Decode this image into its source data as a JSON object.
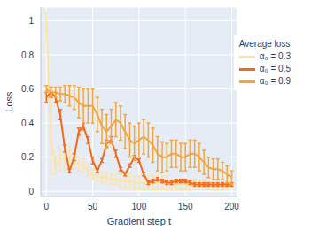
{
  "chart_data": {
    "type": "line",
    "x_label": "Gradient step t",
    "y_label": "Loss",
    "legend_title": "Average loss",
    "legend": "upper right",
    "grid": true,
    "xlim": [
      -6,
      206
    ],
    "ylim": [
      -0.03,
      1.08
    ],
    "xticks": [
      0,
      50,
      100,
      150,
      200
    ],
    "yticks": [
      0,
      0.2,
      0.4,
      0.6,
      0.8,
      1
    ],
    "x": [
      0,
      5,
      10,
      15,
      20,
      25,
      30,
      35,
      40,
      45,
      50,
      55,
      60,
      65,
      70,
      75,
      80,
      85,
      90,
      95,
      100,
      105,
      110,
      115,
      120,
      125,
      130,
      135,
      140,
      145,
      150,
      155,
      160,
      165,
      170,
      175,
      180,
      185,
      190,
      195,
      200
    ],
    "series": [
      {
        "name": "α₀ = 0.3",
        "color": "#fde3a7",
        "values": [
          1.0,
          0.3,
          0.15,
          0.18,
          0.2,
          0.2,
          0.18,
          0.16,
          0.15,
          0.12,
          0.1,
          0.09,
          0.08,
          0.08,
          0.07,
          0.07,
          0.06,
          0.06,
          0.06,
          0.05,
          0.05,
          0.05,
          0.05,
          0.05,
          0.05,
          0.05,
          0.05,
          0.04,
          0.04,
          0.04,
          0.04,
          0.04,
          0.04,
          0.04,
          0.04,
          0.03,
          0.03,
          0.03,
          0.03,
          0.03,
          0.03
        ],
        "error": [
          0.05,
          0.2,
          0.05,
          0.06,
          0.08,
          0.06,
          0.05,
          0.04,
          0.04,
          0.03,
          0.03,
          0.03,
          0.03,
          0.03,
          0.03,
          0.03,
          0.04,
          0.04,
          0.04,
          0.04,
          0.04,
          0.04,
          0.04,
          0.04,
          0.04,
          0.04,
          0.04,
          0.03,
          0.03,
          0.03,
          0.03,
          0.03,
          0.02,
          0.02,
          0.02,
          0.02,
          0.02,
          0.02,
          0.02,
          0.01,
          0.01
        ]
      },
      {
        "name": "α₀ = 0.5",
        "color": "#f26b1d",
        "values": [
          0.55,
          0.58,
          0.55,
          0.45,
          0.25,
          0.12,
          0.2,
          0.35,
          0.38,
          0.3,
          0.18,
          0.12,
          0.18,
          0.28,
          0.3,
          0.22,
          0.13,
          0.1,
          0.15,
          0.2,
          0.18,
          0.1,
          0.05,
          0.06,
          0.07,
          0.06,
          0.05,
          0.05,
          0.06,
          0.06,
          0.06,
          0.05,
          0.04,
          0.04,
          0.04,
          0.04,
          0.04,
          0.04,
          0.04,
          0.04,
          0.04
        ],
        "error": [
          0.03,
          0.03,
          0.03,
          0.03,
          0.02,
          0.01,
          0.02,
          0.02,
          0.02,
          0.02,
          0.02,
          0.01,
          0.01,
          0.02,
          0.02,
          0.02,
          0.01,
          0.01,
          0.01,
          0.01,
          0.01,
          0.01,
          0.01,
          0.01,
          0.01,
          0.01,
          0.01,
          0.01,
          0.01,
          0.01,
          0.01,
          0.01,
          0.01,
          0.01,
          0.01,
          0.01,
          0.01,
          0.01,
          0.01,
          0.01,
          0.01
        ]
      },
      {
        "name": "α₀ = 0.9",
        "color": "#f5a53a",
        "values": [
          0.6,
          0.58,
          0.58,
          0.57,
          0.57,
          0.56,
          0.55,
          0.52,
          0.5,
          0.5,
          0.5,
          0.45,
          0.38,
          0.35,
          0.38,
          0.42,
          0.4,
          0.35,
          0.3,
          0.28,
          0.3,
          0.32,
          0.3,
          0.27,
          0.22,
          0.2,
          0.2,
          0.22,
          0.22,
          0.2,
          0.2,
          0.22,
          0.22,
          0.2,
          0.17,
          0.14,
          0.13,
          0.13,
          0.12,
          0.1,
          0.08
        ],
        "error": [
          0.02,
          0.03,
          0.03,
          0.04,
          0.05,
          0.06,
          0.07,
          0.09,
          0.1,
          0.1,
          0.1,
          0.1,
          0.1,
          0.1,
          0.1,
          0.1,
          0.1,
          0.1,
          0.1,
          0.1,
          0.1,
          0.1,
          0.1,
          0.1,
          0.1,
          0.09,
          0.08,
          0.08,
          0.08,
          0.08,
          0.08,
          0.08,
          0.08,
          0.08,
          0.07,
          0.06,
          0.06,
          0.06,
          0.05,
          0.05,
          0.04
        ]
      }
    ]
  }
}
